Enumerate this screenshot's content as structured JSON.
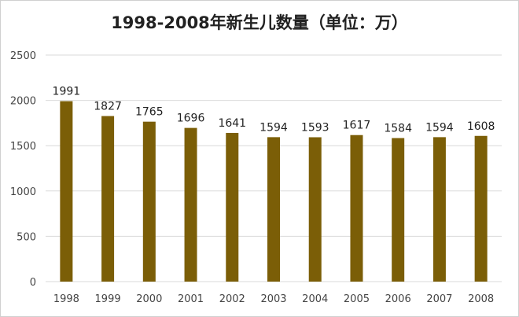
{
  "chart_data": {
    "type": "bar",
    "title": "1998-2008年新生儿数量（单位：万）",
    "categories": [
      "1998",
      "1999",
      "2000",
      "2001",
      "2002",
      "2003",
      "2004",
      "2005",
      "2006",
      "2007",
      "2008"
    ],
    "values": [
      1991,
      1827,
      1765,
      1696,
      1641,
      1594,
      1593,
      1617,
      1584,
      1594,
      1608
    ],
    "ylim": [
      0,
      2500
    ],
    "yticks": [
      0,
      500,
      1000,
      1500,
      2000,
      2500
    ],
    "yticks_labels": [
      "0",
      "500",
      "1000",
      "1500",
      "2000",
      "2500"
    ],
    "grid": true,
    "legend": "none",
    "bar_color": "#7b5e07",
    "grid_color": "#d9d9d9"
  }
}
